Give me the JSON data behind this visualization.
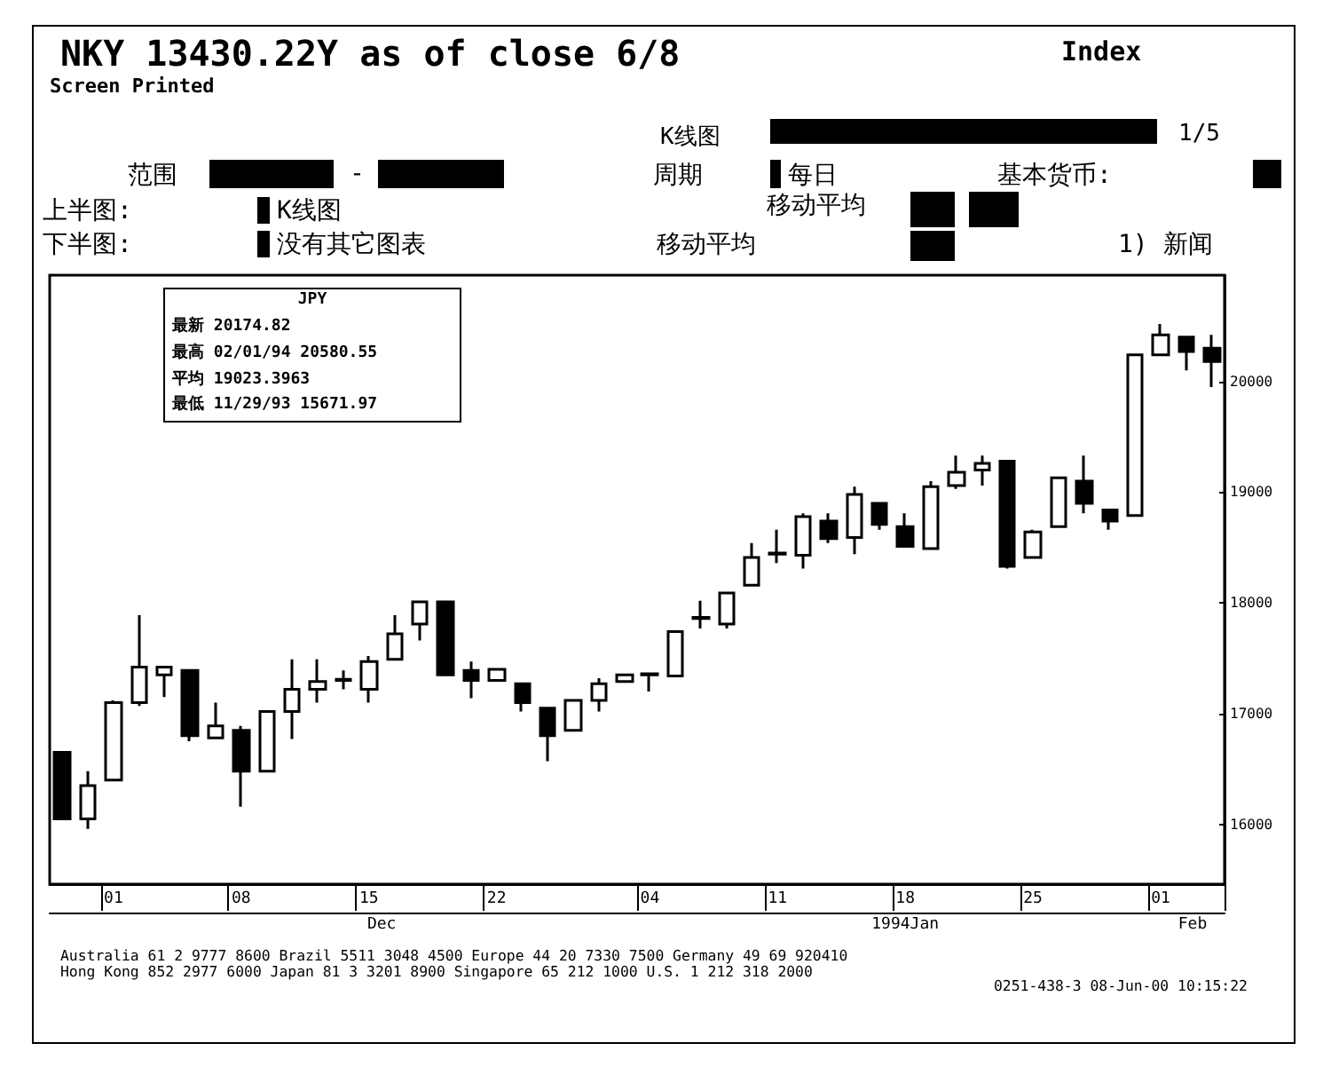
{
  "chart_data": {
    "type": "candlestick",
    "title": "NKY 13430.22Y as of close 6/8",
    "subtitle": "Screen Printed",
    "color": "#000000",
    "categories": [
      null,
      null,
      "01",
      null,
      null,
      null,
      null,
      "08",
      null,
      null,
      null,
      null,
      "15",
      null,
      null,
      null,
      null,
      "22",
      null,
      null,
      null,
      null,
      null,
      "04",
      null,
      null,
      null,
      null,
      "11",
      null,
      null,
      null,
      null,
      "18",
      null,
      null,
      null,
      null,
      "25",
      null,
      null,
      null,
      null,
      "01",
      null,
      null
    ],
    "ohlc": [
      [
        16650,
        16650,
        16050,
        16050
      ],
      [
        16050,
        16480,
        15960,
        16350
      ],
      [
        16400,
        17120,
        16400,
        17100
      ],
      [
        17100,
        17890,
        17070,
        17420
      ],
      [
        17350,
        17420,
        17150,
        17420
      ],
      [
        17390,
        17390,
        16750,
        16800
      ],
      [
        16780,
        17100,
        16770,
        16890
      ],
      [
        16850,
        16890,
        16160,
        16480
      ],
      [
        16480,
        17020,
        16480,
        17020
      ],
      [
        17020,
        17490,
        16770,
        17220
      ],
      [
        17220,
        17490,
        17100,
        17290
      ],
      [
        17300,
        17390,
        17220,
        17310
      ],
      [
        17220,
        17520,
        17100,
        17470
      ],
      [
        17490,
        17890,
        17490,
        17720
      ],
      [
        17810,
        18010,
        17660,
        18010
      ],
      [
        18010,
        18010,
        17350,
        17350
      ],
      [
        17390,
        17470,
        17140,
        17300
      ],
      [
        17300,
        17400,
        17300,
        17400
      ],
      [
        17270,
        17270,
        17020,
        17100
      ],
      [
        17050,
        17050,
        16570,
        16800
      ],
      [
        16850,
        17120,
        16850,
        17120
      ],
      [
        17120,
        17320,
        17020,
        17270
      ],
      [
        17290,
        17350,
        17290,
        17350
      ],
      [
        17350,
        17360,
        17200,
        17360
      ],
      [
        17340,
        17740,
        17340,
        17740
      ],
      [
        17860,
        18020,
        17770,
        17870
      ],
      [
        17810,
        18090,
        17770,
        18090
      ],
      [
        18160,
        18540,
        18160,
        18410
      ],
      [
        18440,
        18660,
        18360,
        18450
      ],
      [
        18430,
        18810,
        18310,
        18780
      ],
      [
        18740,
        18810,
        18540,
        18580
      ],
      [
        18590,
        19050,
        18440,
        18980
      ],
      [
        18900,
        18900,
        18660,
        18710
      ],
      [
        18690,
        18810,
        18510,
        18510
      ],
      [
        18490,
        19100,
        18490,
        19050
      ],
      [
        19060,
        19330,
        19030,
        19180
      ],
      [
        19200,
        19330,
        19060,
        19260
      ],
      [
        19280,
        19280,
        18310,
        18330
      ],
      [
        18410,
        18660,
        18410,
        18640
      ],
      [
        18690,
        19130,
        18690,
        19130
      ],
      [
        19100,
        19330,
        18810,
        18900
      ],
      [
        18840,
        18840,
        18660,
        18740
      ],
      [
        18790,
        20240,
        18790,
        20240
      ],
      [
        20240,
        20520,
        20240,
        20420
      ],
      [
        20400,
        20400,
        20100,
        20270
      ],
      [
        20300,
        20420,
        19950,
        20180
      ]
    ],
    "ylim": [
      15460,
      20960
    ],
    "yticks": [
      16000,
      17000,
      18000,
      19000,
      20000
    ],
    "annotations": [
      "Index",
      "K线图",
      "1/5",
      "范围",
      "-",
      "周期",
      "每日",
      "基本货币:",
      "上半图:",
      "K线图",
      "移动平均",
      "下半图:",
      "没有其它图表",
      "移动平均",
      "1) 新闻",
      "JPY",
      "最新 20174.82",
      "最高 02/01/94 20580.55",
      "平均 19023.3963",
      "最低 11/29/93 15671.97",
      "Australia 61 2 9777 8600    Brazil 5511 3048 4500    Europe 44 20 7330 7500    Germany 49 69 920410",
      "Hong Kong 852 2977 6000  Japan 81 3 3201 8900  Singapore 65 212 1000  U.S. 1 212 318 2000",
      "0251-438-3 08-Jun-00 10:15:22",
      "Dec",
      "1994Jan",
      "Feb"
    ]
  }
}
